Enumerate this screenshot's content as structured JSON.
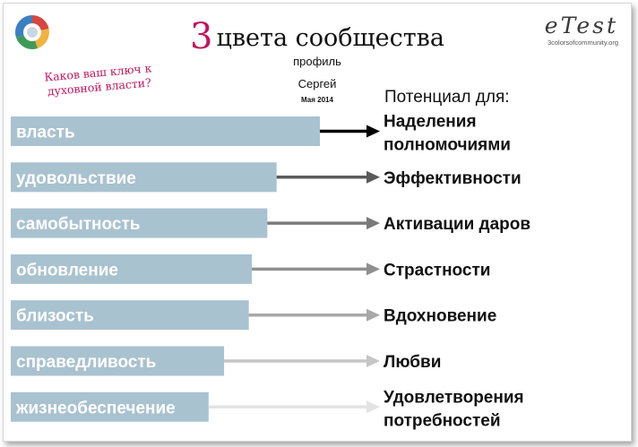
{
  "header": {
    "title_number": "3",
    "title_text": "цвета сообщества",
    "subtitle": "профиль",
    "person": "Сергей",
    "date": "Мая 2014",
    "question": "Каков ваш ключ к духовной власти?",
    "brand_name": "eTest",
    "brand_url": "3colorsofcommunity.org"
  },
  "chart_data": {
    "type": "bar",
    "orientation": "horizontal",
    "potential_heading": "Потенциал для:",
    "categories": [
      "власть",
      "удовольствие",
      "самобытность",
      "обновление",
      "близость",
      "справедливость",
      "жизнеобеспечение"
    ],
    "values": [
      100,
      86,
      83,
      78,
      77,
      69,
      64
    ],
    "targets": [
      [
        "Наделения",
        "полномочиями"
      ],
      [
        "Эффективности"
      ],
      [
        "Активации даров"
      ],
      [
        "Страстности"
      ],
      [
        "Вдохновение"
      ],
      [
        "Любви"
      ],
      [
        "Удовлетворения",
        "потребностей"
      ]
    ],
    "xlim": [
      0,
      100
    ],
    "grid": false,
    "bar_color": "#a9c2d0",
    "arrow_colors": [
      "#000000",
      "#5a5a5a",
      "#7a7a7a",
      "#8f8f8f",
      "#a8a8a8",
      "#c6c6c6",
      "#e3e3e3"
    ]
  }
}
